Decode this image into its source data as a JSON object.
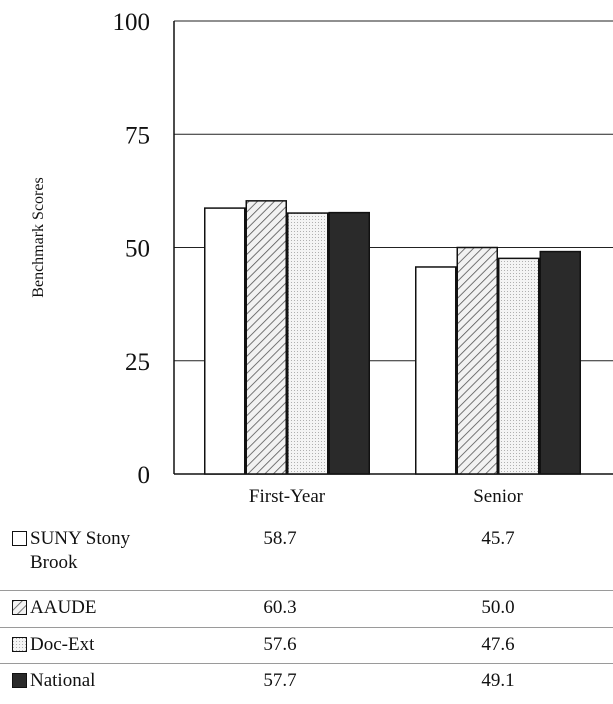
{
  "chart_data": {
    "type": "bar",
    "categories": [
      "First-Year",
      "Senior"
    ],
    "series": [
      {
        "name": "SUNY Stony Brook",
        "values": [
          58.7,
          45.7
        ],
        "pattern": "white",
        "color": "#ffffff"
      },
      {
        "name": "AAUDE",
        "values": [
          60.3,
          50.0
        ],
        "pattern": "hatch",
        "color": "#d8d8d8"
      },
      {
        "name": "Doc-Ext",
        "values": [
          57.6,
          47.6
        ],
        "pattern": "dots",
        "color": "#e4e4e4"
      },
      {
        "name": "National",
        "values": [
          57.7,
          49.1
        ],
        "pattern": "solid",
        "color": "#2a2a2a"
      }
    ],
    "ylabel": "Benchmark Scores",
    "ylim": [
      0,
      100
    ],
    "yticks": [
      "0",
      "25",
      "50",
      "75",
      "100"
    ],
    "grid": true,
    "legend": "table below chart"
  },
  "table": {
    "rows": [
      {
        "label": "SUNY Stony Brook",
        "values": [
          "58.7",
          "45.7"
        ]
      },
      {
        "label": "AAUDE",
        "values": [
          "60.3",
          "50.0"
        ]
      },
      {
        "label": "Doc-Ext",
        "values": [
          "57.6",
          "47.6"
        ]
      },
      {
        "label": "National",
        "values": [
          "57.7",
          "49.1"
        ]
      }
    ]
  }
}
